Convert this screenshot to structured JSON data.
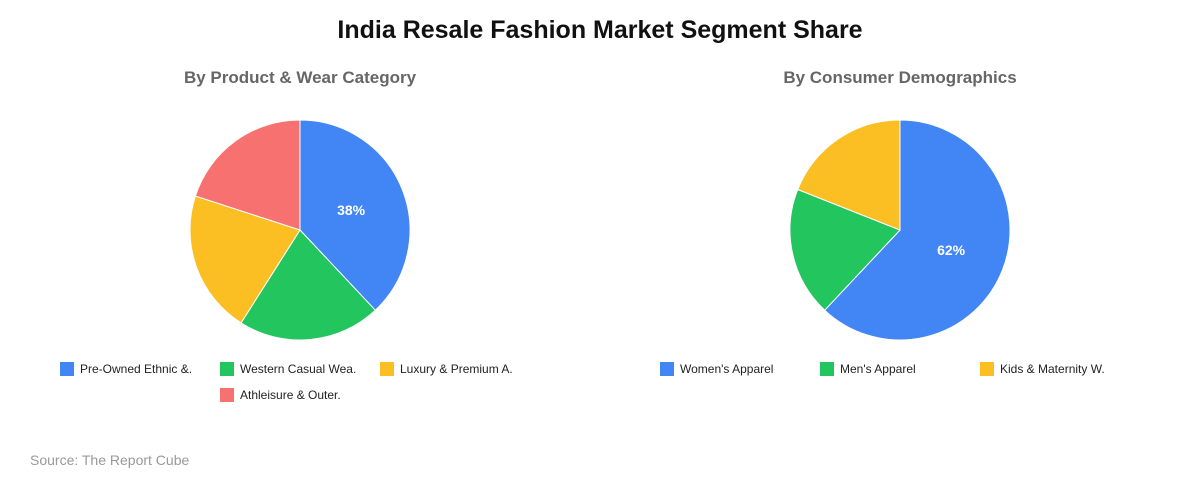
{
  "title": "India Resale Fashion Market Segment Share",
  "source": "Source: The Report Cube",
  "chart_data": [
    {
      "type": "pie",
      "title": "By Product & Wear Category",
      "categories": [
        "Pre-Owned Ethnic &.",
        "Western Casual Wea.",
        "Luxury & Premium A.",
        "Athleisure & Outer."
      ],
      "values": [
        38,
        21,
        21,
        20
      ],
      "colors": [
        "#4285F4",
        "#22C55E",
        "#FBBF24",
        "#F87171"
      ],
      "data_labels": [
        "38%",
        "",
        "",
        ""
      ],
      "legend_position": "bottom"
    },
    {
      "type": "pie",
      "title": "By Consumer Demographics",
      "categories": [
        "Women's Apparel",
        "Men's Apparel",
        "Kids & Maternity W."
      ],
      "values": [
        62,
        19,
        19
      ],
      "colors": [
        "#4285F4",
        "#22C55E",
        "#FBBF24"
      ],
      "data_labels": [
        "62%",
        "",
        ""
      ],
      "legend_position": "bottom"
    }
  ]
}
